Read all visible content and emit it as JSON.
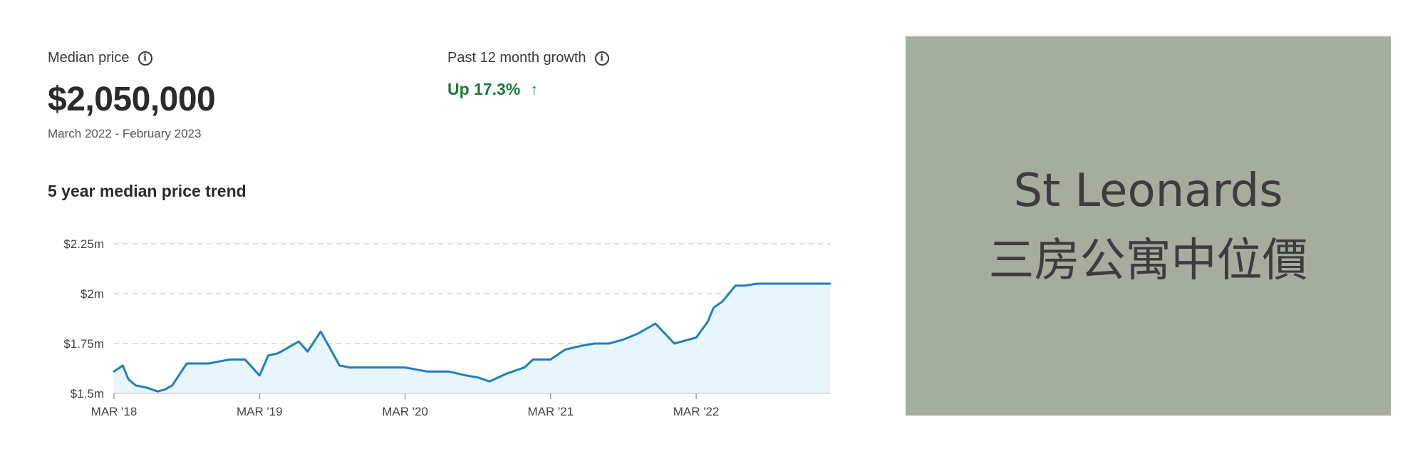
{
  "header": {
    "median_label": "Median price",
    "median_value": "$2,050,000",
    "period": "March 2022 - February 2023",
    "growth_label": "Past 12 month growth",
    "growth_value": "Up 17.3%",
    "growth_arrow": "↑",
    "accent_color": "#1f7a3c"
  },
  "chart_data": {
    "type": "area",
    "title": "5 year median price trend",
    "xlabel": "",
    "ylabel": "",
    "ylim": [
      1.5,
      2.25
    ],
    "yticks": [
      {
        "value": 2.25,
        "label": "$2.25m"
      },
      {
        "value": 2.0,
        "label": "$2m"
      },
      {
        "value": 1.75,
        "label": "$1.75m"
      },
      {
        "value": 1.5,
        "label": "$1.5m"
      }
    ],
    "xlim": [
      2018.0,
      2022.92
    ],
    "xticks": [
      {
        "value": 2018.0,
        "label": "MAR '18"
      },
      {
        "value": 2019.0,
        "label": "MAR '19"
      },
      {
        "value": 2020.0,
        "label": "MAR '20"
      },
      {
        "value": 2021.0,
        "label": "MAR '21"
      },
      {
        "value": 2022.0,
        "label": "MAR '22"
      }
    ],
    "grid": true,
    "line_color": "#1f7fbf",
    "fill_color": "#e8f6fc",
    "series": [
      {
        "x": [
          2018.0,
          2018.06,
          2018.1,
          2018.15,
          2018.22,
          2018.3,
          2018.35,
          2018.4,
          2018.5,
          2018.57,
          2018.65,
          2018.72,
          2018.8,
          2018.9,
          2019.0,
          2019.06,
          2019.12,
          2019.15,
          2019.22,
          2019.27,
          2019.33,
          2019.42,
          2019.55,
          2019.62,
          2019.7,
          2019.83,
          2020.0,
          2020.15,
          2020.3,
          2020.42,
          2020.5,
          2020.58,
          2020.7,
          2020.82,
          2020.88,
          2021.0,
          2021.1,
          2021.22,
          2021.3,
          2021.4,
          2021.5,
          2021.6,
          2021.72,
          2021.85,
          2022.0,
          2022.08,
          2022.12,
          2022.18,
          2022.27,
          2022.33,
          2022.42,
          2022.5,
          2022.58,
          2022.63,
          2022.7,
          2022.83,
          2022.92
        ],
        "y": [
          1.61,
          1.64,
          1.57,
          1.54,
          1.53,
          1.51,
          1.52,
          1.54,
          1.65,
          1.65,
          1.65,
          1.66,
          1.67,
          1.67,
          1.59,
          1.69,
          1.7,
          1.71,
          1.74,
          1.76,
          1.71,
          1.81,
          1.64,
          1.63,
          1.63,
          1.63,
          1.63,
          1.61,
          1.61,
          1.59,
          1.58,
          1.56,
          1.6,
          1.63,
          1.67,
          1.67,
          1.72,
          1.74,
          1.75,
          1.75,
          1.77,
          1.8,
          1.85,
          1.75,
          1.78,
          1.86,
          1.93,
          1.96,
          2.04,
          2.04,
          2.05,
          2.05,
          2.05,
          2.05,
          2.05,
          2.05,
          2.05
        ]
      }
    ]
  },
  "panel": {
    "line1": "St Leonards",
    "line2": "三房公寓中位價",
    "background": "#a5ad9e"
  }
}
